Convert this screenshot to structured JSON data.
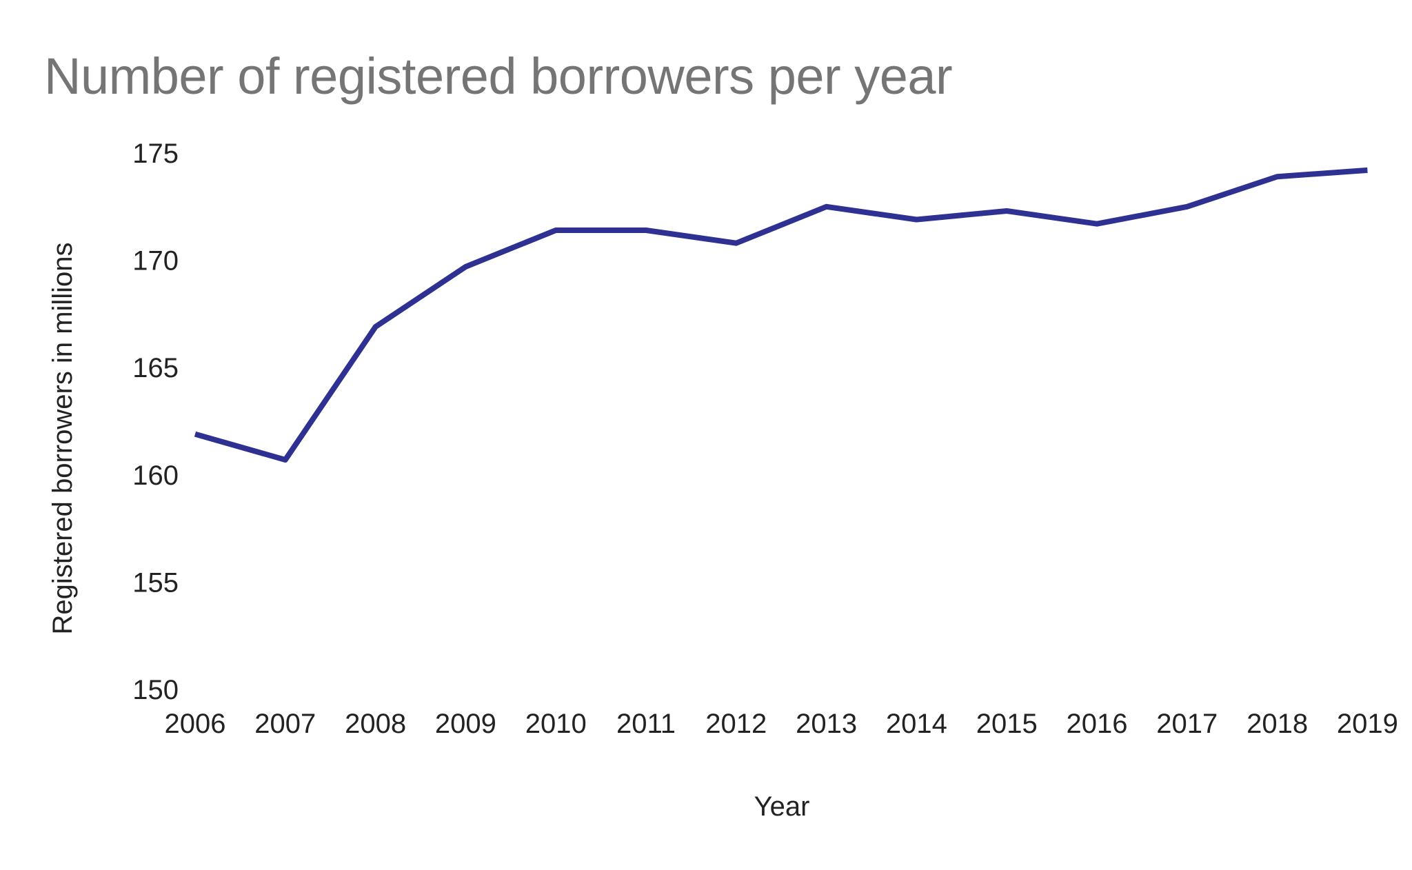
{
  "chart_data": {
    "type": "line",
    "title": "Number of registered borrowers per year",
    "xlabel": "Year",
    "ylabel": "Registered borrowers in millions",
    "categories": [
      "2006",
      "2007",
      "2008",
      "2009",
      "2010",
      "2011",
      "2012",
      "2013",
      "2014",
      "2015",
      "2016",
      "2017",
      "2018",
      "2019"
    ],
    "series": [
      {
        "name": "Registered borrowers",
        "color": "#2e3192",
        "values": [
          161.9,
          160.7,
          166.9,
          169.7,
          171.4,
          171.4,
          170.8,
          172.5,
          171.9,
          172.3,
          171.7,
          172.5,
          173.9,
          174.2
        ]
      }
    ],
    "yticks": [
      150,
      155,
      160,
      165,
      170,
      175
    ],
    "ylim": [
      150,
      175
    ],
    "grid": false,
    "legend": "none"
  }
}
